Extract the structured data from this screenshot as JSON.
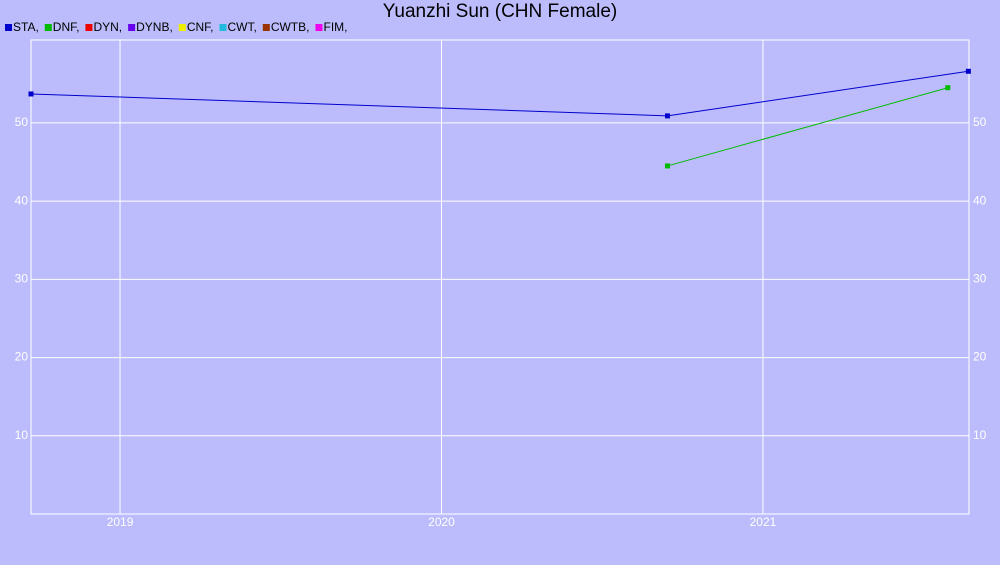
{
  "chart_data": {
    "type": "line",
    "title": "Yuanzhi Sun (CHN Female)",
    "xlim": [
      2018.723,
      2021.641
    ],
    "xticks": [
      2019,
      2020,
      2021
    ],
    "ylim": [
      0,
      60.6
    ],
    "yticks": [
      10,
      20,
      30,
      40,
      50
    ],
    "grid": true,
    "series": [
      {
        "name": "STA,",
        "color": "#0000cc",
        "x": [
          2018.723,
          2020.703,
          2021.639
        ],
        "values": [
          53.7,
          50.9,
          56.6
        ]
      },
      {
        "name": "DNF,",
        "color": "#00bb00",
        "x": [
          2020.703,
          2021.575
        ],
        "values": [
          44.5,
          54.5
        ]
      },
      {
        "name": "DYN,",
        "color": "#ee0000",
        "x": [],
        "values": []
      },
      {
        "name": "DYNB,",
        "color": "#6600ee",
        "x": [],
        "values": []
      },
      {
        "name": "CNF,",
        "color": "#eeee00",
        "x": [],
        "values": []
      },
      {
        "name": "CWT,",
        "color": "#22bbdd",
        "x": [],
        "values": []
      },
      {
        "name": "CWTB,",
        "color": "#993300",
        "x": [],
        "values": []
      },
      {
        "name": "FIM,",
        "color": "#ee00ee",
        "x": [],
        "values": []
      }
    ]
  }
}
